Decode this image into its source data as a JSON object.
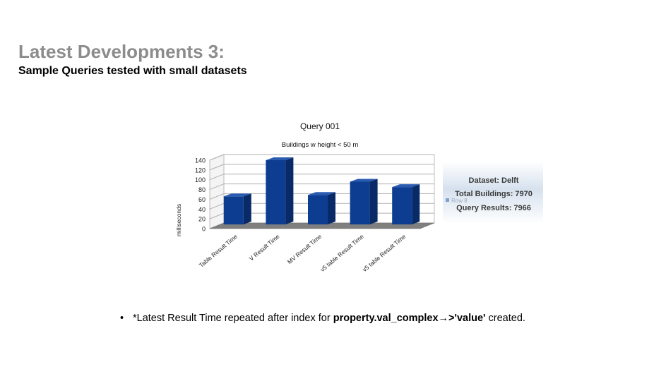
{
  "slide": {
    "title": "Latest Developments 3:",
    "subtitle": "Sample Queries tested with small datasets"
  },
  "chart_data": {
    "type": "bar",
    "title": "Query 001",
    "subtitle": "Buildings w height < 50 m",
    "xlabel": "",
    "ylabel": "milliseconds",
    "categories": [
      "Table Result Time",
      "V Result Time",
      "MV Result Time",
      "v5 table Result Time",
      "v5 table Result Time"
    ],
    "series": [
      {
        "name": "Row 8",
        "values": [
          66,
          140,
          69,
          96,
          85
        ]
      }
    ],
    "ylim": [
      0,
      140
    ],
    "yticks": [
      0,
      20,
      40,
      60,
      80,
      100,
      120,
      140
    ],
    "grid": true,
    "legend": "right",
    "bar_color": "#0d3d91",
    "bar_side_color": "#082a66",
    "bar_top_color": "#2a5bb0",
    "floor_color": "#7f7f7f"
  },
  "info_box": {
    "dataset": "Dataset: Delft",
    "total_buildings": "Total Buildings: 7970",
    "query_results": "Query Results: 7966"
  },
  "bullet": {
    "marker": "•",
    "text_before": "*Latest Result Time repeated after index for ",
    "text_bold": "property.val_complex",
    "arrow": "→",
    "text_bold_2": ">'value'",
    "text_after": " created."
  }
}
